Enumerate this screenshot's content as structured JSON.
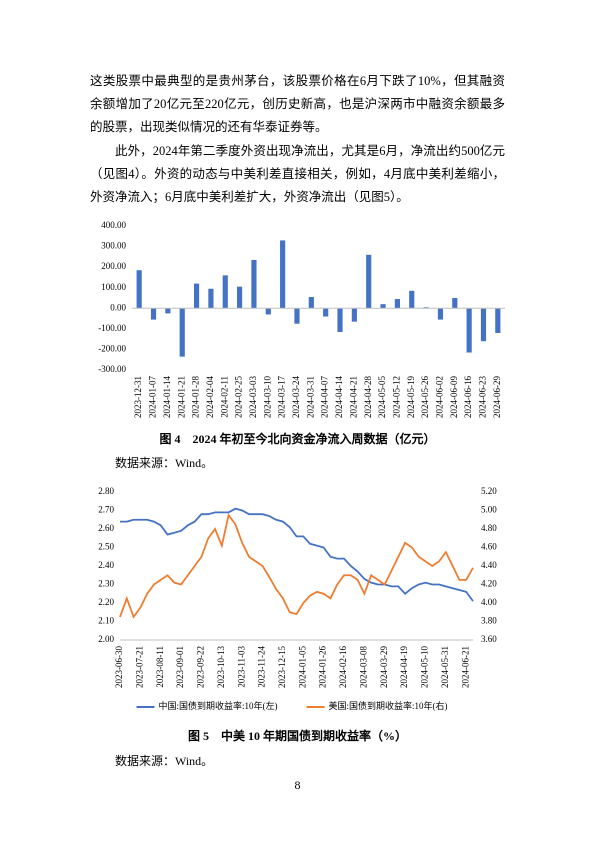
{
  "paragraphs": [
    "这类股票中最典型的是贵州茅台，该股票价格在6月下跌了10%，但其融资余额增加了20亿元至220亿元，创历史新高，也是沪深两市中融资余额最多的股票，出现类似情况的还有华泰证券等。",
    "此外，2024年第二季度外资出现净流出，尤其是6月，净流出约500亿元（见图4）。外资的动态与中美利差直接相关，例如，4月底中美利差缩小，外资净流入；6月底中美利差扩大，外资净流出（见图5）。"
  ],
  "chart_data": [
    {
      "type": "bar",
      "color": "#4472c4",
      "grid": false,
      "categories": [
        "2023-12-31",
        "2024-01-07",
        "2024-01-14",
        "2024-01-21",
        "2024-01-28",
        "2024-02-04",
        "2024-02-11",
        "2024-02-25",
        "2024-03-03",
        "2024-03-10",
        "2024-03-17",
        "2024-03-24",
        "2024-03-31",
        "2024-04-07",
        "2024-04-14",
        "2024-04-21",
        "2024-04-28",
        "2024-05-05",
        "2024-05-12",
        "2024-05-19",
        "2024-05-26",
        "2024-06-02",
        "2024-06-09",
        "2024-06-16",
        "2024-06-23",
        "2024-06-29"
      ],
      "values": [
        185,
        -55,
        -25,
        -235,
        120,
        95,
        160,
        105,
        235,
        -30,
        330,
        -75,
        55,
        -40,
        -115,
        -65,
        260,
        20,
        45,
        85,
        5,
        -55,
        50,
        -215,
        -160,
        -120
      ],
      "ylim": [
        -300,
        400
      ],
      "yticks": [
        {
          "value": 400,
          "label": "400.00"
        },
        {
          "value": 300,
          "label": "300.00"
        },
        {
          "value": 200,
          "label": "200.00"
        },
        {
          "value": 100,
          "label": "100.00"
        },
        {
          "value": 0,
          "label": "0.00"
        },
        {
          "value": -100,
          "label": "-100.00"
        },
        {
          "value": -200,
          "label": "-200.00"
        },
        {
          "value": -300,
          "label": "-300.00"
        }
      ]
    },
    {
      "type": "line",
      "grid": false,
      "legend": "bottom",
      "categories": [
        "2023-06-30",
        null,
        null,
        "2023-07-21",
        null,
        null,
        "2023-08-11",
        null,
        null,
        "2023-09-01",
        null,
        null,
        "2023-09-22",
        null,
        null,
        "2023-10-13",
        null,
        null,
        "2023-11-03",
        null,
        null,
        "2023-11-24",
        null,
        null,
        "2023-12-15",
        null,
        null,
        "2024-01-05",
        null,
        null,
        "2024-01-26",
        null,
        null,
        "2024-02-16",
        null,
        null,
        "2024-03-08",
        null,
        null,
        "2024-03-29",
        null,
        null,
        "2024-04-19",
        null,
        null,
        "2024-05-10",
        null,
        null,
        "2024-05-31",
        null,
        null,
        "2024-06-21",
        null
      ],
      "series": [
        {
          "name": "中国:国债到期收益率:10年(左)",
          "color": "#4472c4",
          "values": [
            2.64,
            2.64,
            2.65,
            2.65,
            2.65,
            2.64,
            2.62,
            2.57,
            2.58,
            2.59,
            2.62,
            2.64,
            2.68,
            2.68,
            2.69,
            2.69,
            2.69,
            2.71,
            2.7,
            2.68,
            2.68,
            2.68,
            2.67,
            2.65,
            2.64,
            2.61,
            2.56,
            2.56,
            2.52,
            2.51,
            2.5,
            2.45,
            2.44,
            2.44,
            2.4,
            2.37,
            2.33,
            2.31,
            2.3,
            2.3,
            2.29,
            2.29,
            2.25,
            2.28,
            2.3,
            2.31,
            2.3,
            2.3,
            2.29,
            2.28,
            2.27,
            2.26,
            2.21
          ]
        },
        {
          "name": "美国:国债到期收益率:10年(右)",
          "color": "#ed7d31",
          "axis": "y2",
          "values": [
            3.85,
            4.05,
            3.85,
            3.95,
            4.1,
            4.2,
            4.25,
            4.3,
            4.22,
            4.2,
            4.3,
            4.4,
            4.5,
            4.7,
            4.8,
            4.62,
            4.95,
            4.85,
            4.65,
            4.5,
            4.45,
            4.4,
            4.28,
            4.15,
            4.05,
            3.9,
            3.88,
            4.0,
            4.08,
            4.12,
            4.1,
            4.05,
            4.2,
            4.3,
            4.3,
            4.25,
            4.1,
            4.3,
            4.25,
            4.2,
            4.35,
            4.5,
            4.65,
            4.6,
            4.5,
            4.45,
            4.4,
            4.45,
            4.55,
            4.4,
            4.25,
            4.25,
            4.38
          ]
        }
      ],
      "ylim": [
        2.0,
        2.8
      ],
      "yticks": [
        {
          "value": 2.8,
          "label": "2.80"
        },
        {
          "value": 2.7,
          "label": "2.70"
        },
        {
          "value": 2.6,
          "label": "2.60"
        },
        {
          "value": 2.5,
          "label": "2.50"
        },
        {
          "value": 2.4,
          "label": "2.40"
        },
        {
          "value": 2.3,
          "label": "2.30"
        },
        {
          "value": 2.2,
          "label": "2.20"
        },
        {
          "value": 2.1,
          "label": "2.10"
        },
        {
          "value": 2.0,
          "label": "2.00"
        }
      ],
      "y2lim": [
        3.6,
        5.2
      ],
      "y2ticks": [
        {
          "value": 5.2,
          "label": "5.20"
        },
        {
          "value": 5.0,
          "label": "5.00"
        },
        {
          "value": 4.8,
          "label": "4.80"
        },
        {
          "value": 4.6,
          "label": "4.60"
        },
        {
          "value": 4.4,
          "label": "4.40"
        },
        {
          "value": 4.2,
          "label": "4.20"
        },
        {
          "value": 4.0,
          "label": "4.00"
        },
        {
          "value": 3.8,
          "label": "3.80"
        },
        {
          "value": 3.6,
          "label": "3.60"
        }
      ]
    }
  ],
  "captions": [
    "图 4　2024 年初至今北向资金净流入周数据（亿元）",
    "图 5　中美 10 年期国债到期收益率（%）"
  ],
  "sources": [
    "数据来源：Wind。",
    "数据来源：Wind。"
  ],
  "page_number": "8"
}
